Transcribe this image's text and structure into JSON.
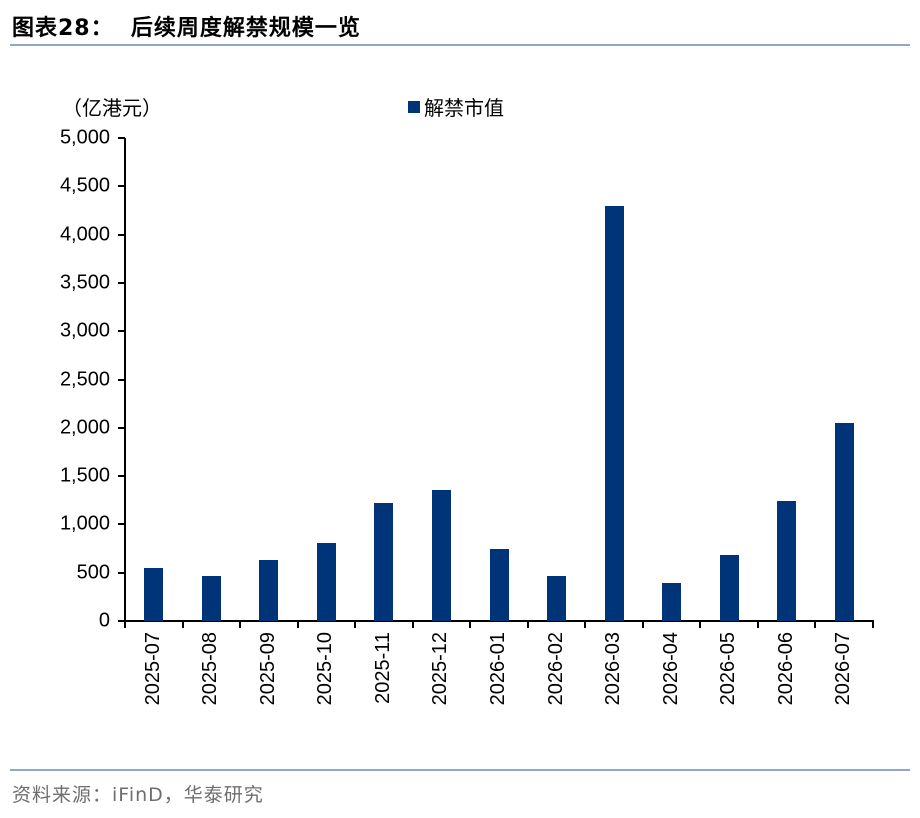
{
  "header": {
    "title": "图表28：  后续周度解禁规模一览"
  },
  "footer": {
    "source": "资料来源：iFinD，华泰研究"
  },
  "chart_data": {
    "type": "bar",
    "title": "后续周度解禁规模一览",
    "xlabel": "",
    "ylabel": "（亿港元）",
    "ylim": [
      0,
      5000
    ],
    "yticks": [
      0,
      500,
      1000,
      1500,
      2000,
      2500,
      3000,
      3500,
      4000,
      4500,
      5000
    ],
    "ytick_labels": [
      "0",
      "500",
      "1,000",
      "1,500",
      "2,000",
      "2,500",
      "3,000",
      "3,500",
      "4,000",
      "4,500",
      "5,000"
    ],
    "grid": false,
    "legend_position": "top-center",
    "categories": [
      "2025-07",
      "2025-08",
      "2025-09",
      "2025-10",
      "2025-11",
      "2025-12",
      "2026-01",
      "2026-02",
      "2026-03",
      "2026-04",
      "2026-05",
      "2026-06",
      "2026-07"
    ],
    "series": [
      {
        "name": "解禁市值",
        "color": "#003478",
        "values": [
          546,
          467,
          633,
          812,
          1222,
          1360,
          750,
          463,
          4300,
          398,
          688,
          1239,
          2053
        ]
      }
    ]
  }
}
